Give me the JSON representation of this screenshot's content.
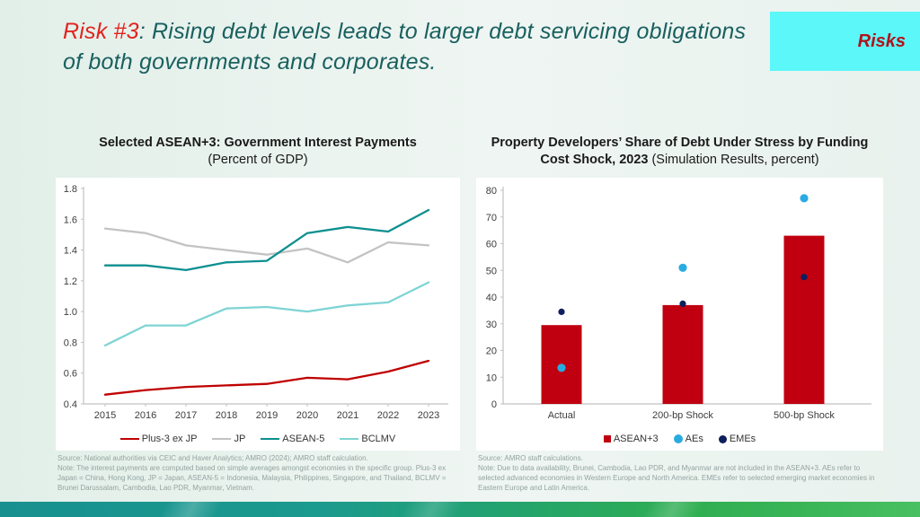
{
  "header": {
    "risk_label": "Risk #3",
    "title_rest": ": Rising debt levels leads to larger debt servicing obligations of both governments and corporates.",
    "tab_label": "Risks"
  },
  "colors": {
    "title_red": "#e2231f",
    "title_teal": "#19605f",
    "tab_bg": "#5cf7f8",
    "tab_text": "#b2121c",
    "footer_teal": "#18908f",
    "footer_green": "#2fae51",
    "footnote_gray": "#94a3a0",
    "axis_gray": "#c2c2c2",
    "tick_label": "#3c3c3c"
  },
  "chart_data": [
    {
      "type": "line",
      "title": "Selected ASEAN+3: Government Interest Payments",
      "subtitle": "(Percent of GDP)",
      "x": [
        2015,
        2016,
        2017,
        2018,
        2019,
        2020,
        2021,
        2022,
        2023
      ],
      "ylim": [
        0.4,
        1.8
      ],
      "ytick_step": 0.2,
      "grid": false,
      "legend_position": "bottom",
      "series": [
        {
          "name": "Plus-3 ex JP",
          "color": "#c00000",
          "values": [
            0.46,
            0.49,
            0.51,
            0.52,
            0.53,
            0.57,
            0.56,
            0.61,
            0.68
          ]
        },
        {
          "name": "JP",
          "color": "#c3c3c3",
          "values": [
            1.54,
            1.51,
            1.43,
            1.4,
            1.37,
            1.41,
            1.32,
            1.45,
            1.43
          ]
        },
        {
          "name": "ASEAN-5",
          "color": "#0e8f8f",
          "values": [
            1.3,
            1.3,
            1.27,
            1.32,
            1.33,
            1.51,
            1.55,
            1.52,
            1.66
          ]
        },
        {
          "name": "BCLMV",
          "color": "#7fd4d4",
          "values": [
            0.78,
            0.91,
            0.91,
            1.02,
            1.03,
            1.0,
            1.04,
            1.06,
            1.19
          ]
        }
      ],
      "source": "Source: National authorities via CEIC and Haver Analytics; AMRO (2024); AMRO staff calculation.",
      "note": "Note: The interest payments are computed based on simple averages amongst economies in the specific group. Plus-3 ex Japan = China, Hong Kong, JP = Japan, ASEAN-5 = Indonesia, Malaysia, Philippines, Singapore, and Thailand, BCLMV = Brunei Darussalam, Cambodia, Lao PDR, Myanmar, Vietnam."
    },
    {
      "type": "bar",
      "title": "Property Developers’ Share of Debt Under Stress by Funding Cost Shock, 2023",
      "subtitle": "(Simulation Results, percent)",
      "categories": [
        "Actual",
        "200-bp Shock",
        "500-bp Shock"
      ],
      "ylim": [
        0,
        80
      ],
      "ytick_step": 10,
      "grid": false,
      "legend_position": "bottom",
      "series": [
        {
          "name": "ASEAN+3",
          "type": "bar",
          "color": "#c00010",
          "values": [
            29.5,
            37,
            63
          ]
        },
        {
          "name": "AEs",
          "type": "scatter",
          "color": "#29abe2",
          "values": [
            13.5,
            51,
            77
          ]
        },
        {
          "name": "EMEs",
          "type": "scatter",
          "color": "#0d1f5c",
          "values": [
            34.5,
            37.5,
            47.5
          ]
        }
      ],
      "source": "Source: AMRO staff calculations.",
      "note": "Note: Due to data availability, Brunei, Cambodia, Lao PDR, and Myanmar are not included in the ASEAN+3. AEs refer to selected advanced economies in Western Europe and North America. EMEs refer to selected emerging market economies in Eastern Europe and Latin America."
    }
  ]
}
